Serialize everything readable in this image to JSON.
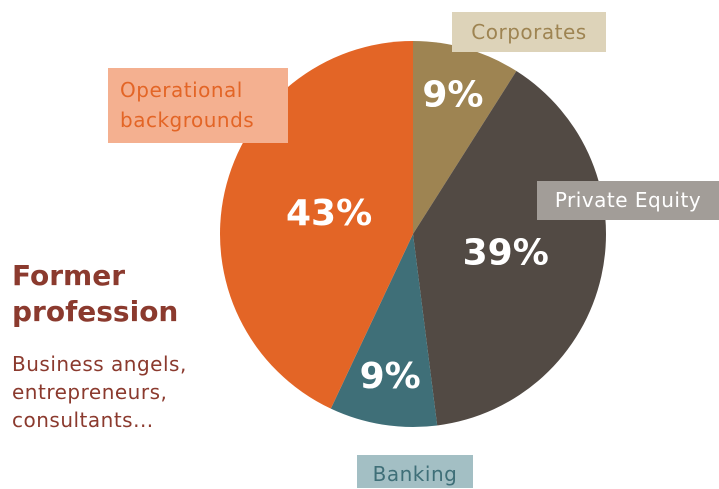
{
  "chart_data": {
    "type": "pie",
    "title": "Former profession",
    "subtitle": "Business angels, entrepreneurs, consultants...",
    "categories": [
      "Corporates",
      "Private Equity",
      "Banking",
      "Operational backgrounds"
    ],
    "values": [
      9,
      39,
      9,
      43
    ],
    "value_labels": [
      "9%",
      "39%",
      "9%",
      "43%"
    ],
    "colors": [
      "#9e8452",
      "#524a44",
      "#3f6f78",
      "#e36526"
    ]
  }
}
